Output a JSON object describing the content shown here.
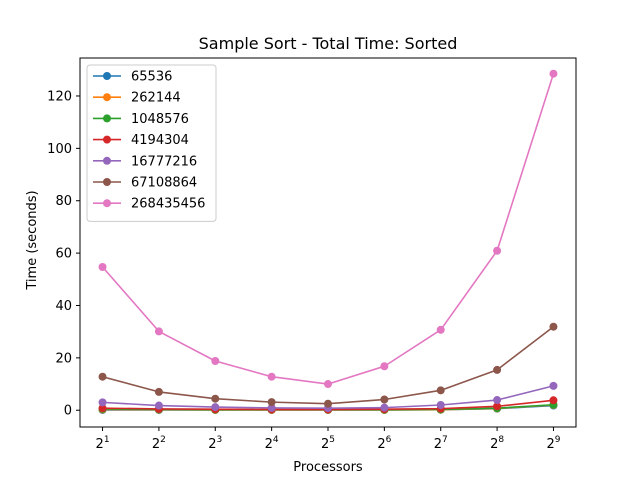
{
  "chart_data": {
    "type": "line",
    "title": "Sample Sort - Total Time: Sorted",
    "xlabel": "Processors",
    "ylabel": "Time (seconds)",
    "x_scale": "log2",
    "x": [
      2,
      4,
      8,
      16,
      32,
      64,
      128,
      256,
      512
    ],
    "x_tick_labels": [
      {
        "base": "2",
        "exp": "1"
      },
      {
        "base": "2",
        "exp": "2"
      },
      {
        "base": "2",
        "exp": "3"
      },
      {
        "base": "2",
        "exp": "4"
      },
      {
        "base": "2",
        "exp": "5"
      },
      {
        "base": "2",
        "exp": "6"
      },
      {
        "base": "2",
        "exp": "7"
      },
      {
        "base": "2",
        "exp": "8"
      },
      {
        "base": "2",
        "exp": "9"
      }
    ],
    "ylim": [
      -6.4,
      134.5
    ],
    "y_ticks": [
      0,
      20,
      40,
      60,
      80,
      100,
      120
    ],
    "grid": false,
    "legend": "top-left",
    "series": [
      {
        "name": "65536",
        "color": "#1f77b4",
        "values": [
          0.1,
          0.1,
          0.1,
          0.1,
          0.1,
          0.1,
          0.2,
          0.6,
          1.8
        ]
      },
      {
        "name": "262144",
        "color": "#ff7f0e",
        "values": [
          0.3,
          0.2,
          0.1,
          0.1,
          0.1,
          0.1,
          0.2,
          0.7,
          2.0
        ]
      },
      {
        "name": "1048576",
        "color": "#2ca02c",
        "values": [
          0.5,
          0.3,
          0.2,
          0.2,
          0.2,
          0.2,
          0.3,
          0.8,
          2.1
        ]
      },
      {
        "name": "4194304",
        "color": "#d62728",
        "values": [
          0.8,
          0.5,
          0.4,
          0.3,
          0.3,
          0.4,
          0.6,
          1.5,
          3.8
        ]
      },
      {
        "name": "16777216",
        "color": "#9467bd",
        "values": [
          3.0,
          1.8,
          1.2,
          0.9,
          0.8,
          1.0,
          2.0,
          3.9,
          9.3
        ]
      },
      {
        "name": "67108864",
        "color": "#8c564b",
        "values": [
          12.8,
          7.0,
          4.4,
          3.1,
          2.5,
          4.1,
          7.6,
          15.4,
          31.9
        ]
      },
      {
        "name": "268435456",
        "color": "#e377c2",
        "values": [
          54.7,
          30.1,
          18.8,
          12.8,
          10.0,
          16.8,
          30.7,
          60.9,
          128.5
        ]
      }
    ]
  }
}
